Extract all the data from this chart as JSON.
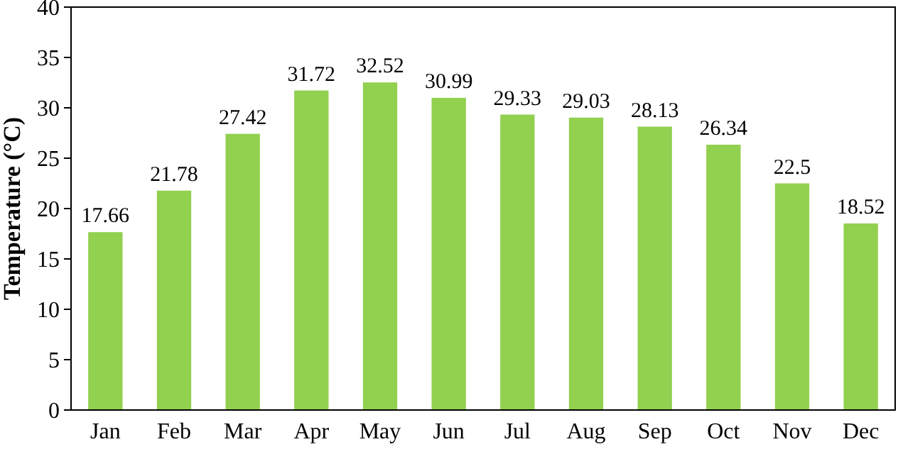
{
  "chart_data": {
    "type": "bar",
    "ylabel": "Temperature (°C)",
    "categories": [
      "Jan",
      "Feb",
      "Mar",
      "Apr",
      "May",
      "Jun",
      "Jul",
      "Aug",
      "Sep",
      "Oct",
      "Nov",
      "Dec"
    ],
    "values": [
      17.66,
      21.78,
      27.42,
      31.72,
      32.52,
      30.99,
      29.33,
      29.03,
      28.13,
      26.34,
      22.5,
      18.52
    ],
    "color": "#92d050",
    "ylim": [
      0,
      40
    ],
    "yticks": [
      0,
      5,
      10,
      15,
      20,
      25,
      30,
      35,
      40
    ],
    "data_labels": true,
    "grid": false
  }
}
